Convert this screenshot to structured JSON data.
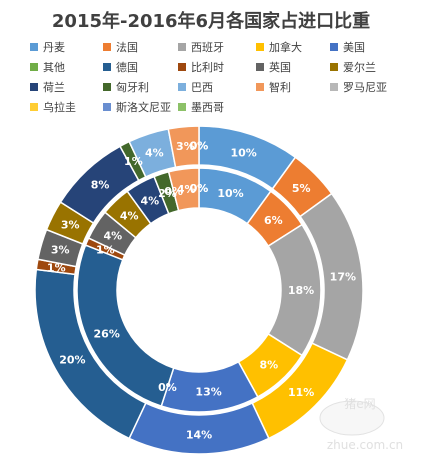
{
  "chart_data": {
    "type": "donut",
    "title": "2015年-2016年6月各国家占进口比重",
    "legend_position": "top",
    "categories": [
      "丹麦",
      "法国",
      "西班牙",
      "加拿大",
      "美国",
      "其他",
      "德国",
      "比利时",
      "英国",
      "爱尔兰",
      "荷兰",
      "匈牙利",
      "巴西",
      "智利",
      "罗马尼亚",
      "乌拉圭",
      "斯洛文尼亚",
      "墨西哥"
    ],
    "colors": [
      "#5b9bd5",
      "#ed7d31",
      "#a5a5a5",
      "#ffc000",
      "#4472c4",
      "#70ad47",
      "#255e91",
      "#9e480e",
      "#636363",
      "#997300",
      "#264478",
      "#43682b",
      "#7cafdd",
      "#f1975a",
      "#b7b7b7",
      "#ffcd33",
      "#698ed0",
      "#8cc168"
    ],
    "series": [
      {
        "values": [
          10,
          5,
          17,
          11,
          14,
          0,
          20,
          1,
          3,
          3,
          8,
          1,
          4,
          3,
          0,
          0,
          0,
          0
        ],
        "labels": [
          "10%",
          "5%",
          "17%",
          "11%",
          "14%",
          "",
          "20%",
          "1%",
          "3%",
          "3%",
          "8%",
          "1%",
          "4%",
          "3%",
          "0%",
          "0%",
          "",
          ""
        ]
      },
      {
        "values": [
          10,
          6,
          18,
          8,
          13,
          0,
          26,
          1,
          4,
          4,
          4,
          2,
          0,
          4,
          0,
          0,
          0,
          0
        ],
        "labels": [
          "10%",
          "6%",
          "18%",
          "8%",
          "13%",
          "0%",
          "26%",
          "1%",
          "4%",
          "4%",
          "4%",
          "2%",
          "0%",
          "4%",
          "0%",
          "0%",
          "",
          ""
        ]
      }
    ]
  },
  "watermark": {
    "line1": "猪e网",
    "line2": "zhue.com.cn"
  }
}
